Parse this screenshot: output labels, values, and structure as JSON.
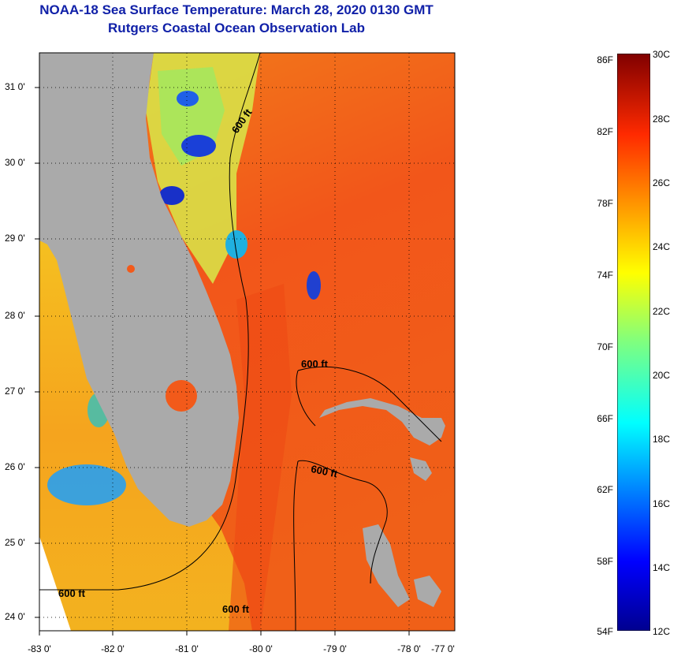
{
  "title_line1": "NOAA-18 Sea Surface Temperature:  March 28, 2020 0130 GMT",
  "title_line2": "Rutgers Coastal Ocean Observation Lab",
  "lat_labels": [
    "31 0'",
    "30 0'",
    "29 0'",
    "28 0'",
    "27 0'",
    "26 0'",
    "25 0'",
    "24 0'"
  ],
  "lon_labels": [
    "-83 0'",
    "-82 0'",
    "-81 0'",
    "-80 0'",
    "-79 0'",
    "-78 0'",
    "-77 0'"
  ],
  "contour_labels": [
    "600 ft",
    "600 ft",
    "600 ft",
    "600 ft",
    "600 ft"
  ],
  "colorbar": {
    "fahrenheit_labels": [
      "86F",
      "82F",
      "78F",
      "74F",
      "70F",
      "66F",
      "62F",
      "58F",
      "54F"
    ],
    "celsius_labels": [
      "30C",
      "28C",
      "26C",
      "24C",
      "22C",
      "20C",
      "18C",
      "16C",
      "14C",
      "12C"
    ]
  },
  "colors": {
    "title": "#1020a8",
    "land": "#a9a9a9",
    "ocean_warm": "#f05a14",
    "ocean_mid": "#f49a1c",
    "cool": "#20a0ff",
    "cold": "#1a2fd0"
  }
}
